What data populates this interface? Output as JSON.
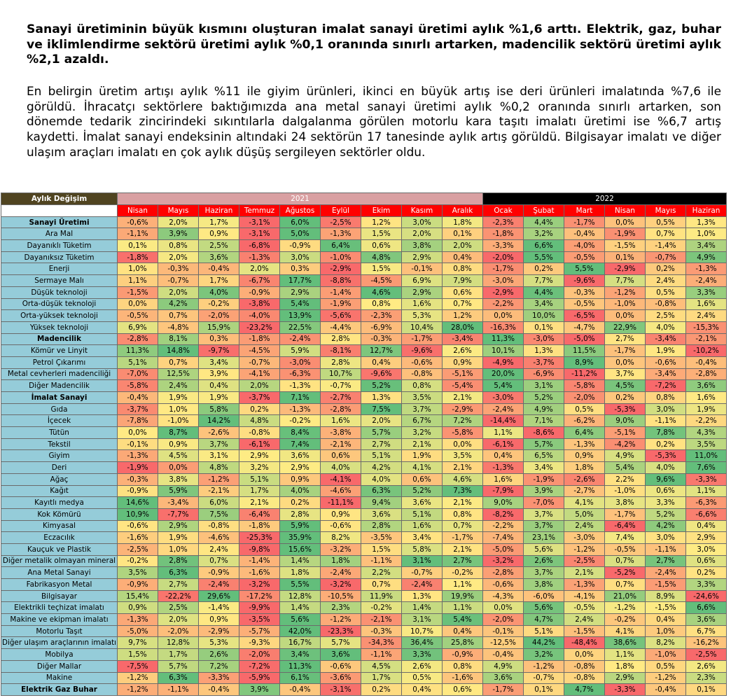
{
  "text": {
    "bold_paragraph": "Sanayi üretiminin büyük kısmını oluşturan imalat sanayi üretimi aylık %1,6 arttı. Elektrik, gaz, buhar ve iklimlendirme sektörü üretimi aylık %0,1 oranında sınırlı artarken, madencilik sektörü üretimi aylık %2,1 azaldı.",
    "paragraph": "En belirgin üretim artışı aylık %11 ile giyim ürünleri, ikinci en büyük artış ise deri ürünleri imalatında %7,6 ile görüldü. İhracatçı sektörlere baktığımızda ana metal sanayi üretimi aylık %0,2 oranında sınırlı artarken, son dönemde tedarik zincirindeki sıkıntılarla dalgalanma görülen motorlu kara taşıtı imalatı üretimi ise %6,7 artış kaydetti. İmalat sanayi endeksinin altındaki 24 sektörün 17 tanesinde aylık artış görüldü. Bilgisayar imalatı ve diğer ulaşım araçları imalatı en çok aylık düşüş sergileyen sektörler oldu."
  },
  "table": {
    "title": "Aylık Değişim",
    "year_2021": "2021",
    "year_2022": "2022",
    "months": [
      "Nisan",
      "Mayıs",
      "Haziran",
      "Temmuz",
      "Ağustos",
      "Eylül",
      "Ekim",
      "Kasım",
      "Aralık",
      "Ocak",
      "Şubat",
      "Mart",
      "Nisan",
      "Mayıs",
      "Haziran"
    ],
    "colors": {
      "title_bg": "#504420",
      "year_2021_bg": "#d9a0a2",
      "year_2022_bg": "#000000",
      "month_bg": "#ff0000",
      "label_bg": "#95ccd9",
      "scale_low": "#f8696b",
      "scale_mid": "#ffeb84",
      "scale_high": "#63be7b"
    },
    "rows": [
      {
        "label": "Sanayi Üretimi",
        "bold": true,
        "values": [
          "-0,6%",
          "2,0%",
          "1,7%",
          "-3,1%",
          "6,0%",
          "-2,5%",
          "1,2%",
          "3,0%",
          "1,8%",
          "-2,3%",
          "4,4%",
          "-1,7%",
          "0,0%",
          "0,5%",
          "1,3%"
        ]
      },
      {
        "label": "Ara Mal",
        "bold": false,
        "values": [
          "-1,1%",
          "3,9%",
          "0,9%",
          "-3,1%",
          "5,0%",
          "-1,3%",
          "1,5%",
          "2,0%",
          "0,1%",
          "-1,8%",
          "3,2%",
          "-0,4%",
          "-1,9%",
          "0,7%",
          "1,0%"
        ]
      },
      {
        "label": "Dayanıklı Tüketim",
        "bold": false,
        "values": [
          "0,1%",
          "0,8%",
          "2,5%",
          "-6,8%",
          "-0,9%",
          "6,4%",
          "0,6%",
          "3,8%",
          "2,0%",
          "-3,3%",
          "6,6%",
          "-4,0%",
          "-1,5%",
          "-1,4%",
          "3,4%"
        ]
      },
      {
        "label": "Dayanıksız Tüketim",
        "bold": false,
        "values": [
          "-1,8%",
          "2,0%",
          "3,6%",
          "-1,3%",
          "3,0%",
          "-1,0%",
          "4,8%",
          "2,9%",
          "0,4%",
          "-2,0%",
          "5,5%",
          "-0,5%",
          "0,1%",
          "-0,7%",
          "4,9%"
        ]
      },
      {
        "label": "Enerji",
        "bold": false,
        "values": [
          "1,0%",
          "-0,3%",
          "-0,4%",
          "2,0%",
          "0,3%",
          "-2,9%",
          "1,5%",
          "-0,1%",
          "0,8%",
          "-1,7%",
          "0,2%",
          "5,5%",
          "-2,9%",
          "0,2%",
          "-1,3%"
        ]
      },
      {
        "label": "Sermaye Malı",
        "bold": false,
        "values": [
          "1,1%",
          "-0,7%",
          "1,7%",
          "-6,7%",
          "17,7%",
          "-8,8%",
          "-4,5%",
          "6,9%",
          "7,9%",
          "-3,0%",
          "7,7%",
          "-9,6%",
          "7,7%",
          "2,4%",
          "-2,4%"
        ]
      },
      {
        "label": "Düşük teknoloji",
        "bold": false,
        "values": [
          "-1,5%",
          "2,0%",
          "4,0%",
          "-0,9%",
          "2,9%",
          "-1,4%",
          "4,6%",
          "2,9%",
          "0,6%",
          "-2,9%",
          "4,4%",
          "-0,3%",
          "-1,2%",
          "0,5%",
          "3,3%"
        ]
      },
      {
        "label": "Orta-düşük teknoloji",
        "bold": false,
        "values": [
          "0,0%",
          "4,2%",
          "-0,2%",
          "-3,8%",
          "5,4%",
          "-1,9%",
          "0,8%",
          "1,6%",
          "0,7%",
          "-2,2%",
          "3,4%",
          "-0,5%",
          "-1,0%",
          "-0,8%",
          "1,6%"
        ]
      },
      {
        "label": "Orta-yüksek teknoloji",
        "bold": false,
        "values": [
          "-0,5%",
          "0,7%",
          "-2,0%",
          "-4,0%",
          "13,9%",
          "-5,6%",
          "-2,3%",
          "5,3%",
          "1,2%",
          "0,0%",
          "10,0%",
          "-6,5%",
          "0,0%",
          "2,5%",
          "2,4%"
        ]
      },
      {
        "label": "Yüksek teknoloji",
        "bold": false,
        "values": [
          "6,9%",
          "-4,8%",
          "15,9%",
          "-23,2%",
          "22,5%",
          "-4,4%",
          "-6,9%",
          "10,4%",
          "28,0%",
          "-16,3%",
          "0,1%",
          "-4,7%",
          "22,9%",
          "4,0%",
          "-15,3%"
        ]
      },
      {
        "label": "Madencilik",
        "bold": true,
        "values": [
          "-2,8%",
          "8,1%",
          "0,3%",
          "-1,8%",
          "-2,4%",
          "2,8%",
          "-0,3%",
          "-1,7%",
          "-3,4%",
          "11,3%",
          "-3,0%",
          "-5,0%",
          "2,7%",
          "-3,4%",
          "-2,1%"
        ]
      },
      {
        "label": "Kömür ve Linyit",
        "bold": false,
        "values": [
          "11,3%",
          "14,8%",
          "-9,7%",
          "-4,5%",
          "5,9%",
          "-8,1%",
          "12,7%",
          "-9,6%",
          "2,6%",
          "10,1%",
          "1,3%",
          "11,5%",
          "-1,7%",
          "1,9%",
          "-10,2%"
        ]
      },
      {
        "label": "Petrol Çıkarımı",
        "bold": false,
        "values": [
          "5,1%",
          "0,7%",
          "3,4%",
          "-0,7%",
          "-3,0%",
          "2,8%",
          "0,4%",
          "-0,6%",
          "0,9%",
          "-4,9%",
          "-3,7%",
          "8,9%",
          "0,0%",
          "-0,6%",
          "-0,4%"
        ]
      },
      {
        "label": "Metal cevherleri madenciliği",
        "bold": false,
        "values": [
          "-7,0%",
          "12,5%",
          "3,9%",
          "-4,1%",
          "-6,3%",
          "10,7%",
          "-9,6%",
          "-0,8%",
          "-5,1%",
          "20,0%",
          "-6,9%",
          "-11,2%",
          "3,7%",
          "-3,4%",
          "-2,8%"
        ]
      },
      {
        "label": "Diğer Madencilik",
        "bold": false,
        "values": [
          "-5,8%",
          "2,4%",
          "0,4%",
          "2,0%",
          "-1,3%",
          "-0,7%",
          "5,2%",
          "0,8%",
          "-5,4%",
          "5,4%",
          "3,1%",
          "-5,8%",
          "4,5%",
          "-7,2%",
          "3,6%"
        ]
      },
      {
        "label": "İmalat Sanayi",
        "bold": true,
        "values": [
          "-0,4%",
          "1,9%",
          "1,9%",
          "-3,7%",
          "7,1%",
          "-2,7%",
          "1,3%",
          "3,5%",
          "2,1%",
          "-3,0%",
          "5,2%",
          "-2,0%",
          "0,2%",
          "0,8%",
          "1,6%"
        ]
      },
      {
        "label": "Gıda",
        "bold": false,
        "values": [
          "-3,7%",
          "1,0%",
          "5,8%",
          "0,2%",
          "-1,3%",
          "-2,8%",
          "7,5%",
          "3,7%",
          "-2,9%",
          "-2,4%",
          "4,9%",
          "0,5%",
          "-5,3%",
          "3,0%",
          "1,9%"
        ]
      },
      {
        "label": "İçecek",
        "bold": false,
        "values": [
          "-7,8%",
          "-1,0%",
          "14,2%",
          "4,8%",
          "-0,2%",
          "1,6%",
          "2,0%",
          "6,7%",
          "7,2%",
          "-14,4%",
          "7,1%",
          "-6,2%",
          "9,0%",
          "-1,1%",
          "-2,2%"
        ]
      },
      {
        "label": "Tütün",
        "bold": false,
        "values": [
          "0,0%",
          "8,7%",
          "-2,6%",
          "-0,8%",
          "8,4%",
          "-3,8%",
          "5,7%",
          "3,2%",
          "-5,8%",
          "1,1%",
          "-8,6%",
          "6,4%",
          "-5,1%",
          "7,8%",
          "4,3%"
        ]
      },
      {
        "label": "Tekstil",
        "bold": false,
        "values": [
          "-0,1%",
          "0,9%",
          "3,7%",
          "-6,1%",
          "7,4%",
          "-2,1%",
          "2,7%",
          "2,1%",
          "0,0%",
          "-6,1%",
          "5,7%",
          "-1,3%",
          "-4,2%",
          "0,2%",
          "3,5%"
        ]
      },
      {
        "label": "Giyim",
        "bold": false,
        "values": [
          "-1,3%",
          "4,5%",
          "3,1%",
          "2,9%",
          "3,6%",
          "0,6%",
          "5,1%",
          "1,9%",
          "3,5%",
          "0,4%",
          "6,5%",
          "0,9%",
          "4,9%",
          "-5,3%",
          "11,0%"
        ]
      },
      {
        "label": "Deri",
        "bold": false,
        "values": [
          "-1,9%",
          "0,0%",
          "4,8%",
          "3,2%",
          "2,9%",
          "4,0%",
          "4,2%",
          "4,1%",
          "2,1%",
          "-1,3%",
          "3,4%",
          "1,8%",
          "5,4%",
          "4,0%",
          "7,6%"
        ]
      },
      {
        "label": "Ağaç",
        "bold": false,
        "values": [
          "-0,3%",
          "3,8%",
          "-1,2%",
          "5,1%",
          "0,9%",
          "-4,1%",
          "4,0%",
          "0,6%",
          "4,6%",
          "1,6%",
          "-1,9%",
          "-2,6%",
          "2,2%",
          "9,6%",
          "-3,3%"
        ]
      },
      {
        "label": "Kağıt",
        "bold": false,
        "values": [
          "-0,9%",
          "5,9%",
          "-2,1%",
          "1,7%",
          "4,0%",
          "-4,6%",
          "6,3%",
          "5,2%",
          "7,3%",
          "-7,9%",
          "3,9%",
          "-2,7%",
          "-1,0%",
          "0,6%",
          "1,1%"
        ]
      },
      {
        "label": "Kayıtlı medya",
        "bold": false,
        "values": [
          "14,6%",
          "-3,4%",
          "6,0%",
          "2,1%",
          "0,2%",
          "-11,1%",
          "9,4%",
          "3,6%",
          "2,1%",
          "9,0%",
          "-7,0%",
          "4,1%",
          "3,8%",
          "3,3%",
          "-6,3%"
        ]
      },
      {
        "label": "Kok Kömürü",
        "bold": false,
        "values": [
          "10,9%",
          "-7,7%",
          "7,5%",
          "-6,4%",
          "2,8%",
          "0,9%",
          "3,6%",
          "5,1%",
          "0,8%",
          "-8,2%",
          "3,7%",
          "5,0%",
          "-1,7%",
          "5,2%",
          "-6,6%"
        ]
      },
      {
        "label": "Kimyasal",
        "bold": false,
        "values": [
          "-0,6%",
          "2,9%",
          "-0,8%",
          "-1,8%",
          "5,9%",
          "-0,6%",
          "2,8%",
          "1,6%",
          "0,7%",
          "-2,2%",
          "3,7%",
          "2,4%",
          "-6,4%",
          "4,2%",
          "0,4%"
        ]
      },
      {
        "label": "Eczacılık",
        "bold": false,
        "values": [
          "-1,6%",
          "1,9%",
          "-4,6%",
          "-25,3%",
          "35,9%",
          "8,2%",
          "-3,5%",
          "3,4%",
          "-1,7%",
          "-7,4%",
          "23,1%",
          "-3,0%",
          "7,4%",
          "3,0%",
          "2,9%"
        ]
      },
      {
        "label": "Kauçuk ve Plastik",
        "bold": false,
        "values": [
          "-2,5%",
          "1,0%",
          "2,4%",
          "-9,8%",
          "15,6%",
          "-3,2%",
          "1,5%",
          "5,8%",
          "2,1%",
          "-5,0%",
          "5,6%",
          "-1,2%",
          "-0,5%",
          "-1,1%",
          "3,0%"
        ]
      },
      {
        "label": "Diğer metalik olmayan mineral",
        "bold": false,
        "values": [
          "-0,2%",
          "2,8%",
          "0,7%",
          "-1,4%",
          "1,4%",
          "1,8%",
          "-1,1%",
          "3,1%",
          "2,7%",
          "-3,2%",
          "2,6%",
          "-2,5%",
          "0,7%",
          "2,7%",
          "0,6%"
        ]
      },
      {
        "label": "Ana Metal Sanayi",
        "bold": false,
        "values": [
          "3,5%",
          "6,3%",
          "-0,9%",
          "-1,6%",
          "1,8%",
          "-2,4%",
          "2,2%",
          "-0,7%",
          "-0,2%",
          "-2,8%",
          "3,7%",
          "2,1%",
          "-5,2%",
          "-2,4%",
          "0,2%"
        ]
      },
      {
        "label": "Fabrikasyon Metal",
        "bold": false,
        "values": [
          "-0,9%",
          "2,7%",
          "-2,4%",
          "-3,2%",
          "5,5%",
          "-3,2%",
          "0,7%",
          "-2,4%",
          "1,1%",
          "-0,6%",
          "3,8%",
          "-1,3%",
          "0,7%",
          "-1,5%",
          "3,3%"
        ]
      },
      {
        "label": "Bilgisayar",
        "bold": false,
        "values": [
          "15,4%",
          "-22,2%",
          "29,6%",
          "-17,2%",
          "12,8%",
          "-10,5%",
          "11,9%",
          "1,3%",
          "19,9%",
          "-4,3%",
          "-6,0%",
          "-4,1%",
          "21,0%",
          "8,9%",
          "-24,6%"
        ]
      },
      {
        "label": "Elektrikli teçhizat imalatı",
        "bold": false,
        "values": [
          "0,9%",
          "2,5%",
          "-1,4%",
          "-9,9%",
          "1,4%",
          "2,3%",
          "-0,2%",
          "1,4%",
          "1,1%",
          "0,0%",
          "5,6%",
          "-0,5%",
          "-1,2%",
          "-1,5%",
          "6,6%"
        ]
      },
      {
        "label": "Makine ve ekipman imalatı",
        "bold": false,
        "values": [
          "-1,3%",
          "2,0%",
          "0,9%",
          "-3,5%",
          "5,6%",
          "-1,2%",
          "-2,1%",
          "3,1%",
          "5,4%",
          "-2,0%",
          "4,7%",
          "2,4%",
          "-0,2%",
          "0,4%",
          "3,6%"
        ]
      },
      {
        "label": "Motorlu Taşıt",
        "bold": false,
        "values": [
          "-5,0%",
          "-2,0%",
          "-2,9%",
          "-5,7%",
          "42,0%",
          "-23,3%",
          "-0,3%",
          "10,7%",
          "0,4%",
          "-0,1%",
          "5,1%",
          "-1,5%",
          "4,1%",
          "1,0%",
          "6,7%"
        ]
      },
      {
        "label": "Diğer ulaşım araçlarının imalatı",
        "bold": false,
        "values": [
          "9,7%",
          "12,8%",
          "5,3%",
          "-9,3%",
          "16,7%",
          "5,7%",
          "-34,3%",
          "36,4%",
          "25,8%",
          "-12,5%",
          "44,2%",
          "-48,4%",
          "38,6%",
          "8,2%",
          "-16,2%"
        ]
      },
      {
        "label": "Mobilya",
        "bold": false,
        "values": [
          "1,5%",
          "1,7%",
          "2,6%",
          "-2,0%",
          "3,4%",
          "3,6%",
          "-1,1%",
          "3,3%",
          "-0,9%",
          "-0,4%",
          "3,2%",
          "0,0%",
          "1,1%",
          "-1,0%",
          "-2,5%"
        ]
      },
      {
        "label": "Diğer Mallar",
        "bold": false,
        "values": [
          "-7,5%",
          "5,7%",
          "7,2%",
          "-7,2%",
          "11,3%",
          "-0,6%",
          "4,5%",
          "2,6%",
          "0,8%",
          "4,9%",
          "-1,2%",
          "-0,8%",
          "1,8%",
          "0,5%",
          "2,6%"
        ]
      },
      {
        "label": "Makine",
        "bold": false,
        "values": [
          "-1,2%",
          "6,3%",
          "-3,3%",
          "-5,9%",
          "6,1%",
          "-3,6%",
          "1,7%",
          "0,5%",
          "-1,6%",
          "3,6%",
          "-0,7%",
          "-0,8%",
          "2,9%",
          "-1,2%",
          "2,3%"
        ]
      },
      {
        "label": "Elektrik Gaz Buhar",
        "bold": true,
        "values": [
          "-1,2%",
          "-1,1%",
          "-0,4%",
          "3,9%",
          "-0,4%",
          "-3,1%",
          "0,2%",
          "0,4%",
          "0,6%",
          "-1,7%",
          "0,1%",
          "4,7%",
          "-3,3%",
          "-0,4%",
          "0,1%"
        ]
      }
    ]
  }
}
